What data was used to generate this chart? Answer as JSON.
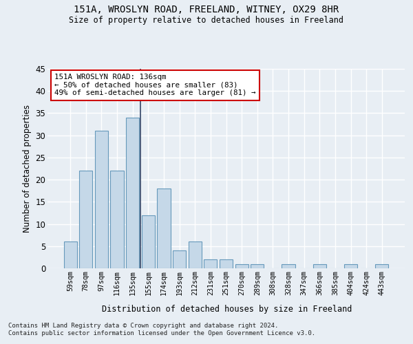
{
  "title1": "151A, WROSLYN ROAD, FREELAND, WITNEY, OX29 8HR",
  "title2": "Size of property relative to detached houses in Freeland",
  "xlabel": "Distribution of detached houses by size in Freeland",
  "ylabel": "Number of detached properties",
  "footer1": "Contains HM Land Registry data © Crown copyright and database right 2024.",
  "footer2": "Contains public sector information licensed under the Open Government Licence v3.0.",
  "categories": [
    "59sqm",
    "78sqm",
    "97sqm",
    "116sqm",
    "135sqm",
    "155sqm",
    "174sqm",
    "193sqm",
    "212sqm",
    "231sqm",
    "251sqm",
    "270sqm",
    "289sqm",
    "308sqm",
    "328sqm",
    "347sqm",
    "366sqm",
    "385sqm",
    "404sqm",
    "424sqm",
    "443sqm"
  ],
  "values": [
    6,
    22,
    31,
    22,
    34,
    12,
    18,
    4,
    6,
    2,
    2,
    1,
    1,
    0,
    1,
    0,
    1,
    0,
    1,
    0,
    1
  ],
  "bar_color": "#c5d8e8",
  "bar_edge_color": "#6699bb",
  "vline_x": 4.5,
  "vline_color": "#334466",
  "annotation_text": "151A WROSLYN ROAD: 136sqm\n← 50% of detached houses are smaller (83)\n49% of semi-detached houses are larger (81) →",
  "annotation_box_color": "#ffffff",
  "annotation_box_edge": "#cc0000",
  "ylim": [
    0,
    45
  ],
  "yticks": [
    0,
    5,
    10,
    15,
    20,
    25,
    30,
    35,
    40,
    45
  ],
  "bg_color": "#e8eef4",
  "plot_bg_color": "#e8eef4",
  "grid_color": "#ffffff",
  "figsize": [
    6.0,
    5.0
  ],
  "dpi": 100
}
